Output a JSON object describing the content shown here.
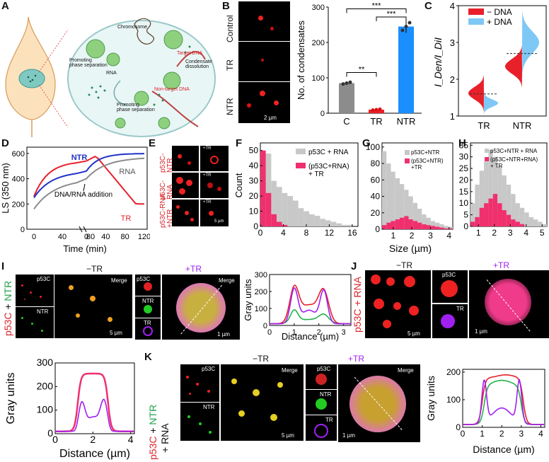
{
  "panels": {
    "A": {
      "label": "A",
      "chromosome": "Chromosome",
      "target_dna": "Target DNA",
      "condensate_dissolution": "Condensate\ndissolution",
      "promoting_phase_separation": "Promoting\nphase separation",
      "rna": "RNA",
      "non_target_dna": "Non-target DNA",
      "promoting_phase_separation_2": "Promoting\nphase separation"
    },
    "B": {
      "label": "B",
      "rows": [
        "Control",
        "TR",
        "NTR"
      ],
      "scale": "2 µm"
    },
    "C": {
      "label": "C"
    },
    "D": {
      "label": "D"
    },
    "E": {
      "label": "E",
      "rows": [
        "p53C-\nNTR",
        "p53C-\nRNA",
        "p53C-RNA\n+NTR"
      ],
      "tag": "+TR",
      "scale": "5 µm"
    },
    "F": {
      "label": "F"
    },
    "G": {
      "label": "G"
    },
    "H": {
      "label": "H"
    },
    "I": {
      "label": "I",
      "side_label_a": "p53C",
      "side_label_plus": " + ",
      "side_label_b": "NTR",
      "minus_tr": "−TR",
      "plus_tr": "+TR",
      "p53c": "p53C",
      "ntr": "NTR",
      "tr": "TR",
      "merge": "Merge",
      "merge2": "Merge",
      "scale1": "5 µm",
      "scale2": "1 µm"
    },
    "J": {
      "label": "J",
      "side_label": "p53C + RNA",
      "minus_tr": "−TR",
      "plus_tr": "+TR",
      "p53c": "p53C",
      "tr": "TR",
      "scale1": "5 µm",
      "scale2": "1 µm"
    },
    "K": {
      "label": "K",
      "side_label_a": "p53C",
      "side_label_plus": " + ",
      "side_label_b": "NTR",
      "side_label_c": "+ RNA",
      "minus_tr": "−TR",
      "plus_tr": "+TR",
      "p53c": "p53C",
      "ntr": "NTR",
      "tr": "TR",
      "merge": "Merge",
      "merge2": "Merge",
      "scale1": "5 µm",
      "scale2": "1 µm"
    }
  },
  "colors": {
    "red": "#e8202a",
    "blue": "#1a8fff",
    "grey": "#8c8c8c",
    "pink": "#f0306e",
    "green": "#22b24c",
    "purple": "#a020f0",
    "lightblue": "#7ec8f5",
    "histgrey": "#c8c8c8"
  },
  "chart_data": [
    {
      "id": "B",
      "type": "bar",
      "categories": [
        "C",
        "TR",
        "NTR"
      ],
      "values": [
        85,
        10,
        245
      ],
      "errors": [
        4,
        2,
        18
      ],
      "ylabel": "No. of condensates",
      "ylim": [
        0,
        300
      ],
      "yticks": [
        0,
        100,
        200,
        300
      ],
      "significance": [
        "***",
        "***",
        "**"
      ]
    },
    {
      "id": "C",
      "type": "violin",
      "categories": [
        "TR",
        "NTR"
      ],
      "ylabel": "I_Den/I_DiI",
      "ylim": [
        1,
        4
      ],
      "yticks": [
        1,
        2,
        3,
        4
      ],
      "legend": [
        "− DNA",
        "+ DNA"
      ]
    },
    {
      "id": "D",
      "type": "line",
      "xlabel": "Time (min)",
      "ylabel": "LS (350 nm)",
      "ylim": [
        0,
        650
      ],
      "yticks": [
        0,
        200,
        400,
        600
      ],
      "xticks_left": [
        0,
        40,
        80
      ],
      "xticks_right": [
        0,
        40,
        80,
        120
      ],
      "series": [
        {
          "name": "NTR"
        },
        {
          "name": "RNA"
        },
        {
          "name": "TR"
        }
      ],
      "annotation": "DNA/RNA addition"
    },
    {
      "id": "F",
      "type": "histogram",
      "ylabel": "Count",
      "xticks": [
        0,
        4,
        8,
        12,
        16
      ],
      "yticks": [
        0,
        10,
        20,
        30,
        40,
        50
      ],
      "legend": [
        "p53C + RNA",
        "(p53C+RNA)\n+ TR"
      ]
    },
    {
      "id": "G",
      "type": "histogram",
      "xticks": [
        1,
        2,
        3,
        4
      ],
      "yticks": [
        0,
        20,
        40,
        60,
        80,
        100
      ],
      "legend": [
        "p53C+NTR",
        "(p53C+NTR)\n+TR"
      ],
      "xlabel": "Size (µm)"
    },
    {
      "id": "H",
      "type": "histogram",
      "xticks": [
        1,
        2,
        3,
        4,
        5
      ],
      "yticks": [
        0,
        5,
        10,
        15,
        20,
        25,
        30,
        35
      ],
      "legend": [
        "p53C+NTR + RNA",
        "(p53C+NTR+RNA)\n+ TR"
      ]
    },
    {
      "id": "I",
      "type": "line",
      "xlabel": "Distance (µm)",
      "ylabel": "Gray units",
      "xticks": [
        0,
        1,
        2,
        3
      ],
      "yticks": [
        0,
        100,
        200,
        300
      ]
    },
    {
      "id": "J",
      "type": "line",
      "xlabel": "Distance (µm)",
      "ylabel": "Gray units",
      "xticks": [
        0,
        2,
        4
      ],
      "yticks": [
        0,
        100,
        200,
        300
      ]
    },
    {
      "id": "K",
      "type": "line",
      "xlabel": "Distance (µm)",
      "ylabel": "Gray units",
      "xticks": [
        0,
        1,
        2,
        3,
        4
      ],
      "yticks": [
        0,
        100,
        200
      ]
    }
  ]
}
